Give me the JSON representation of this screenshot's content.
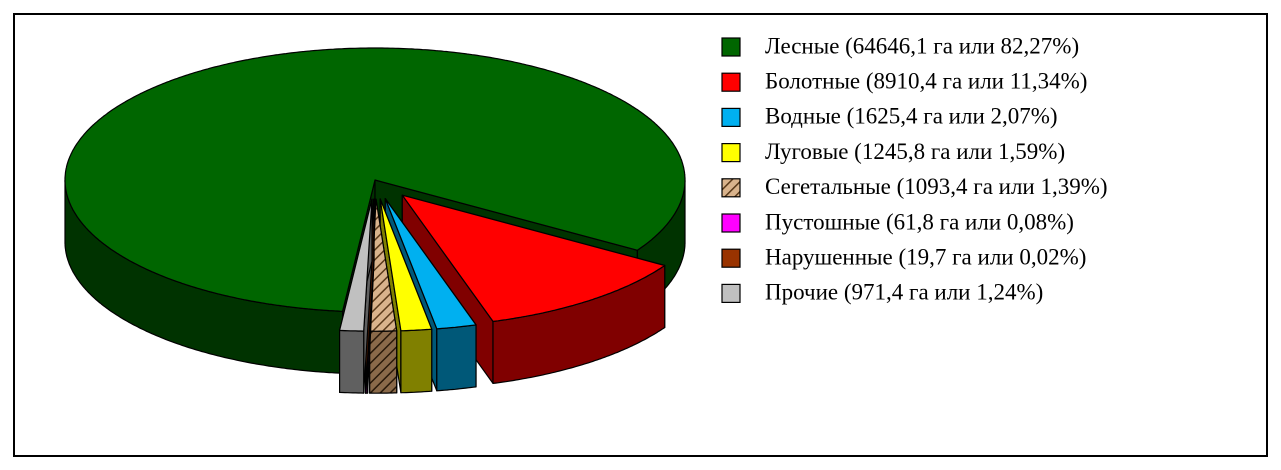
{
  "chart_data": {
    "type": "pie3d",
    "categories": [
      "Лесные (64646,1 га или 82,27%)",
      "Болотные (8910,4 га или 11,34%)",
      "Водные (1625,4 га или 2,07%)",
      "Луговые (1245,8 га или 1,59%)",
      "Сегетальные (1093,4 га или 1,39%)",
      "Пустошные (61,8 га или 0,08%)",
      "Нарушенные (19,7 га или 0,02%)",
      "Прочие (971,4 га или 1,24%)"
    ],
    "values": [
      82.27,
      11.34,
      2.07,
      1.59,
      1.39,
      0.08,
      0.02,
      1.24
    ],
    "colors": [
      "#006600",
      "#ff0000",
      "#00b0f0",
      "#ffff00",
      "#d9b38c",
      "#ff00ff",
      "#993300",
      "#c0c0c0"
    ],
    "hatched": [
      false,
      false,
      false,
      false,
      true,
      false,
      false,
      false
    ],
    "legend": "right"
  }
}
